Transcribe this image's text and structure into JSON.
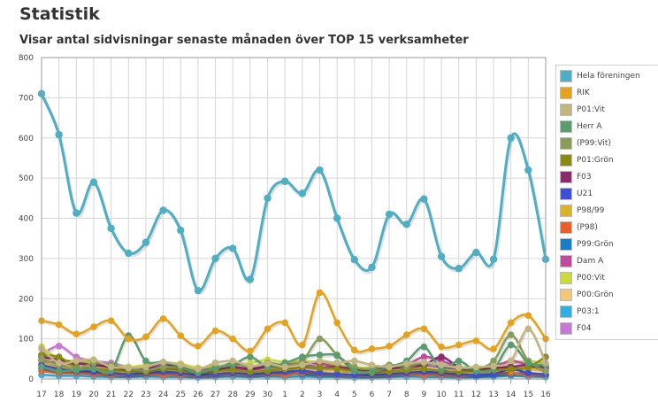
{
  "header": {
    "title": "Statistik",
    "subtitle": "Visar antal sidvisningar senaste månaden över TOP 15 verksamheter"
  },
  "chart_data": {
    "type": "line",
    "categories": [
      "17",
      "18",
      "19",
      "20",
      "21",
      "22",
      "23",
      "24",
      "25",
      "26",
      "27",
      "28",
      "29",
      "30",
      "1",
      "2",
      "3",
      "4",
      "5",
      "6",
      "7",
      "8",
      "9",
      "10",
      "11",
      "12",
      "13",
      "14",
      "15",
      "16"
    ],
    "ylim": [
      0,
      800
    ],
    "yticks": [
      0,
      100,
      200,
      300,
      400,
      500,
      600,
      700,
      800
    ],
    "grid": true,
    "legend_position": "right",
    "series": [
      {
        "name": "Hela föreningen",
        "color": "#4eaec4",
        "values": [
          710,
          608,
          413,
          490,
          375,
          313,
          340,
          420,
          370,
          220,
          300,
          325,
          248,
          450,
          492,
          462,
          520,
          400,
          297,
          278,
          410,
          385,
          448,
          305,
          275,
          315,
          298,
          600,
          520,
          298
        ]
      },
      {
        "name": "RIK",
        "color": "#e6a31a",
        "values": [
          145,
          135,
          112,
          130,
          145,
          100,
          105,
          150,
          108,
          82,
          120,
          100,
          70,
          125,
          140,
          85,
          215,
          140,
          72,
          75,
          82,
          110,
          125,
          80,
          85,
          95,
          75,
          140,
          158,
          100
        ]
      },
      {
        "name": "P01:Vit",
        "color": "#c2b582",
        "values": [
          75,
          40,
          45,
          48,
          30,
          28,
          30,
          42,
          35,
          25,
          40,
          45,
          32,
          38,
          30,
          35,
          45,
          40,
          45,
          35,
          30,
          38,
          42,
          35,
          28,
          30,
          32,
          45,
          125,
          40
        ]
      },
      {
        "name": "Herr A",
        "color": "#5a9b70",
        "values": [
          30,
          20,
          22,
          25,
          20,
          108,
          45,
          42,
          30,
          15,
          28,
          35,
          55,
          30,
          40,
          55,
          60,
          58,
          20,
          18,
          30,
          45,
          80,
          25,
          45,
          20,
          25,
          85,
          40,
          35
        ]
      },
      {
        "name": "(P99:Vit)",
        "color": "#8a9c5a",
        "values": [
          50,
          35,
          25,
          40,
          35,
          25,
          22,
          30,
          28,
          20,
          25,
          40,
          30,
          40,
          35,
          45,
          100,
          60,
          30,
          25,
          35,
          30,
          40,
          35,
          30,
          25,
          45,
          110,
          45,
          20
        ]
      },
      {
        "name": "P01:Grön",
        "color": "#8a8a12",
        "values": [
          60,
          55,
          30,
          25,
          22,
          20,
          18,
          25,
          22,
          15,
          20,
          22,
          18,
          20,
          25,
          30,
          28,
          25,
          20,
          15,
          18,
          22,
          25,
          20,
          18,
          20,
          22,
          25,
          30,
          55
        ]
      },
      {
        "name": "F03",
        "color": "#8c2a6e",
        "values": [
          55,
          48,
          40,
          35,
          30,
          25,
          28,
          30,
          35,
          20,
          25,
          30,
          25,
          32,
          35,
          30,
          28,
          30,
          25,
          22,
          28,
          30,
          35,
          55,
          30,
          25,
          28,
          30,
          35,
          30
        ]
      },
      {
        "name": "U21",
        "color": "#3b4fd8",
        "values": [
          35,
          25,
          20,
          18,
          15,
          12,
          15,
          18,
          15,
          10,
          12,
          15,
          12,
          15,
          18,
          20,
          15,
          12,
          10,
          10,
          12,
          15,
          18,
          15,
          12,
          10,
          12,
          25,
          15,
          12
        ]
      },
      {
        "name": "P98/99",
        "color": "#d9b42a",
        "values": [
          40,
          30,
          28,
          25,
          20,
          18,
          20,
          22,
          20,
          15,
          18,
          20,
          18,
          22,
          25,
          20,
          18,
          15,
          20,
          15,
          18,
          20,
          22,
          18,
          15,
          18,
          20,
          22,
          25,
          20
        ]
      },
      {
        "name": "(P98)",
        "color": "#e8602a",
        "values": [
          20,
          15,
          15,
          12,
          10,
          10,
          12,
          10,
          10,
          8,
          10,
          12,
          10,
          12,
          10,
          15,
          12,
          10,
          8,
          8,
          10,
          12,
          10,
          10,
          8,
          10,
          12,
          15,
          10,
          10
        ]
      },
      {
        "name": "P99:Grön",
        "color": "#1a7fc2",
        "values": [
          25,
          20,
          18,
          15,
          12,
          10,
          12,
          15,
          12,
          8,
          10,
          12,
          10,
          12,
          15,
          12,
          10,
          12,
          10,
          8,
          10,
          12,
          15,
          12,
          10,
          8,
          10,
          12,
          15,
          10
        ]
      },
      {
        "name": "Dam A",
        "color": "#c04aa0",
        "values": [
          45,
          40,
          38,
          35,
          30,
          25,
          22,
          28,
          30,
          20,
          25,
          28,
          22,
          30,
          35,
          40,
          38,
          30,
          25,
          20,
          25,
          35,
          55,
          45,
          30,
          25,
          30,
          45,
          35,
          25
        ]
      },
      {
        "name": "P00:Vit",
        "color": "#c8d93a",
        "values": [
          80,
          50,
          45,
          40,
          35,
          30,
          35,
          40,
          38,
          28,
          32,
          35,
          40,
          48,
          42,
          45,
          42,
          35,
          30,
          28,
          32,
          38,
          42,
          35,
          30,
          28,
          35,
          40,
          45,
          38
        ]
      },
      {
        "name": "P00:Grön",
        "color": "#f0c878",
        "values": [
          55,
          35,
          30,
          28,
          25,
          22,
          25,
          28,
          25,
          18,
          22,
          25,
          22,
          28,
          30,
          28,
          25,
          22,
          18,
          15,
          20,
          25,
          28,
          22,
          20,
          18,
          22,
          28,
          30,
          25
        ]
      },
      {
        "name": "P03:1",
        "color": "#2eb0e0",
        "values": [
          10,
          8,
          8,
          6,
          5,
          5,
          6,
          5,
          5,
          4,
          5,
          6,
          5,
          6,
          5,
          6,
          5,
          5,
          4,
          4,
          5,
          6,
          5,
          5,
          4,
          5,
          6,
          8,
          6,
          5
        ]
      },
      {
        "name": "F04",
        "color": "#c47ad0",
        "values": [
          60,
          82,
          55,
          45,
          40,
          30,
          28,
          35,
          30,
          22,
          28,
          30,
          25,
          30,
          32,
          35,
          30,
          28,
          25,
          20,
          25,
          30,
          32,
          28,
          25,
          22,
          25,
          30,
          28,
          25
        ]
      }
    ]
  }
}
